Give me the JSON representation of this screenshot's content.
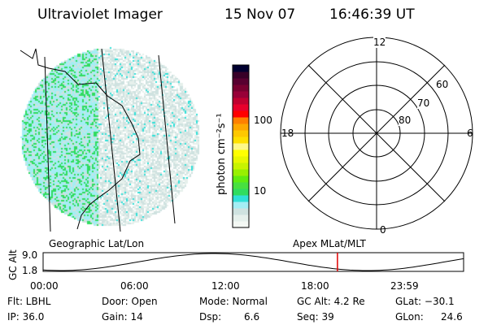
{
  "header": {
    "instrument": "Ultraviolet Imager",
    "date": "15 Nov 07",
    "time": "16:46:39 UT"
  },
  "colorbar": {
    "label": "photon cm⁻²s⁻¹",
    "ticks": [
      "100",
      "10"
    ],
    "colors": [
      "#f4f8f4",
      "#e6f0ec",
      "#cfe2e0",
      "#a4eef4",
      "#30e0d8",
      "#30dc60",
      "#48e040",
      "#60ec10",
      "#98f000",
      "#c8f400",
      "#e8f800",
      "#ffff00",
      "#fff888",
      "#ffe000",
      "#ffc800",
      "#ffa800",
      "#ff8000",
      "#ff0000",
      "#e8002c",
      "#c00030",
      "#980038",
      "#780030",
      "#580030",
      "#380028",
      "#000030"
    ]
  },
  "polar": {
    "mlt_labels": {
      "top": "12",
      "left": "18",
      "right": "6",
      "bottom": "0"
    },
    "lat_labels": [
      "60",
      "70",
      "80"
    ]
  },
  "altitude_plot": {
    "left_label": "Geographic Lat/Lon",
    "right_label": "Apex MLat/MLT",
    "ylabel": "GC Alt",
    "yticks": [
      "9.0",
      "1.8"
    ],
    "xticks": [
      "00:00",
      "06:00",
      "12:00",
      "18:00",
      "23:59"
    ],
    "current_time_fraction": 0.7,
    "marker_color": "#e00000"
  },
  "status": {
    "flt": "Flt: LBHL",
    "ip": "IP: 36.0",
    "door": "Door: Open",
    "gain": "Gain: 14",
    "mode": "Mode: Normal",
    "dsp_label": "Dsp:",
    "dsp_value": "6.6",
    "gcalt": "GC Alt: 4.2 Re",
    "seq": "Seq: 39",
    "glat": "GLat: −30.1",
    "glon_label": "GLon:",
    "glon_value": "24.6"
  }
}
